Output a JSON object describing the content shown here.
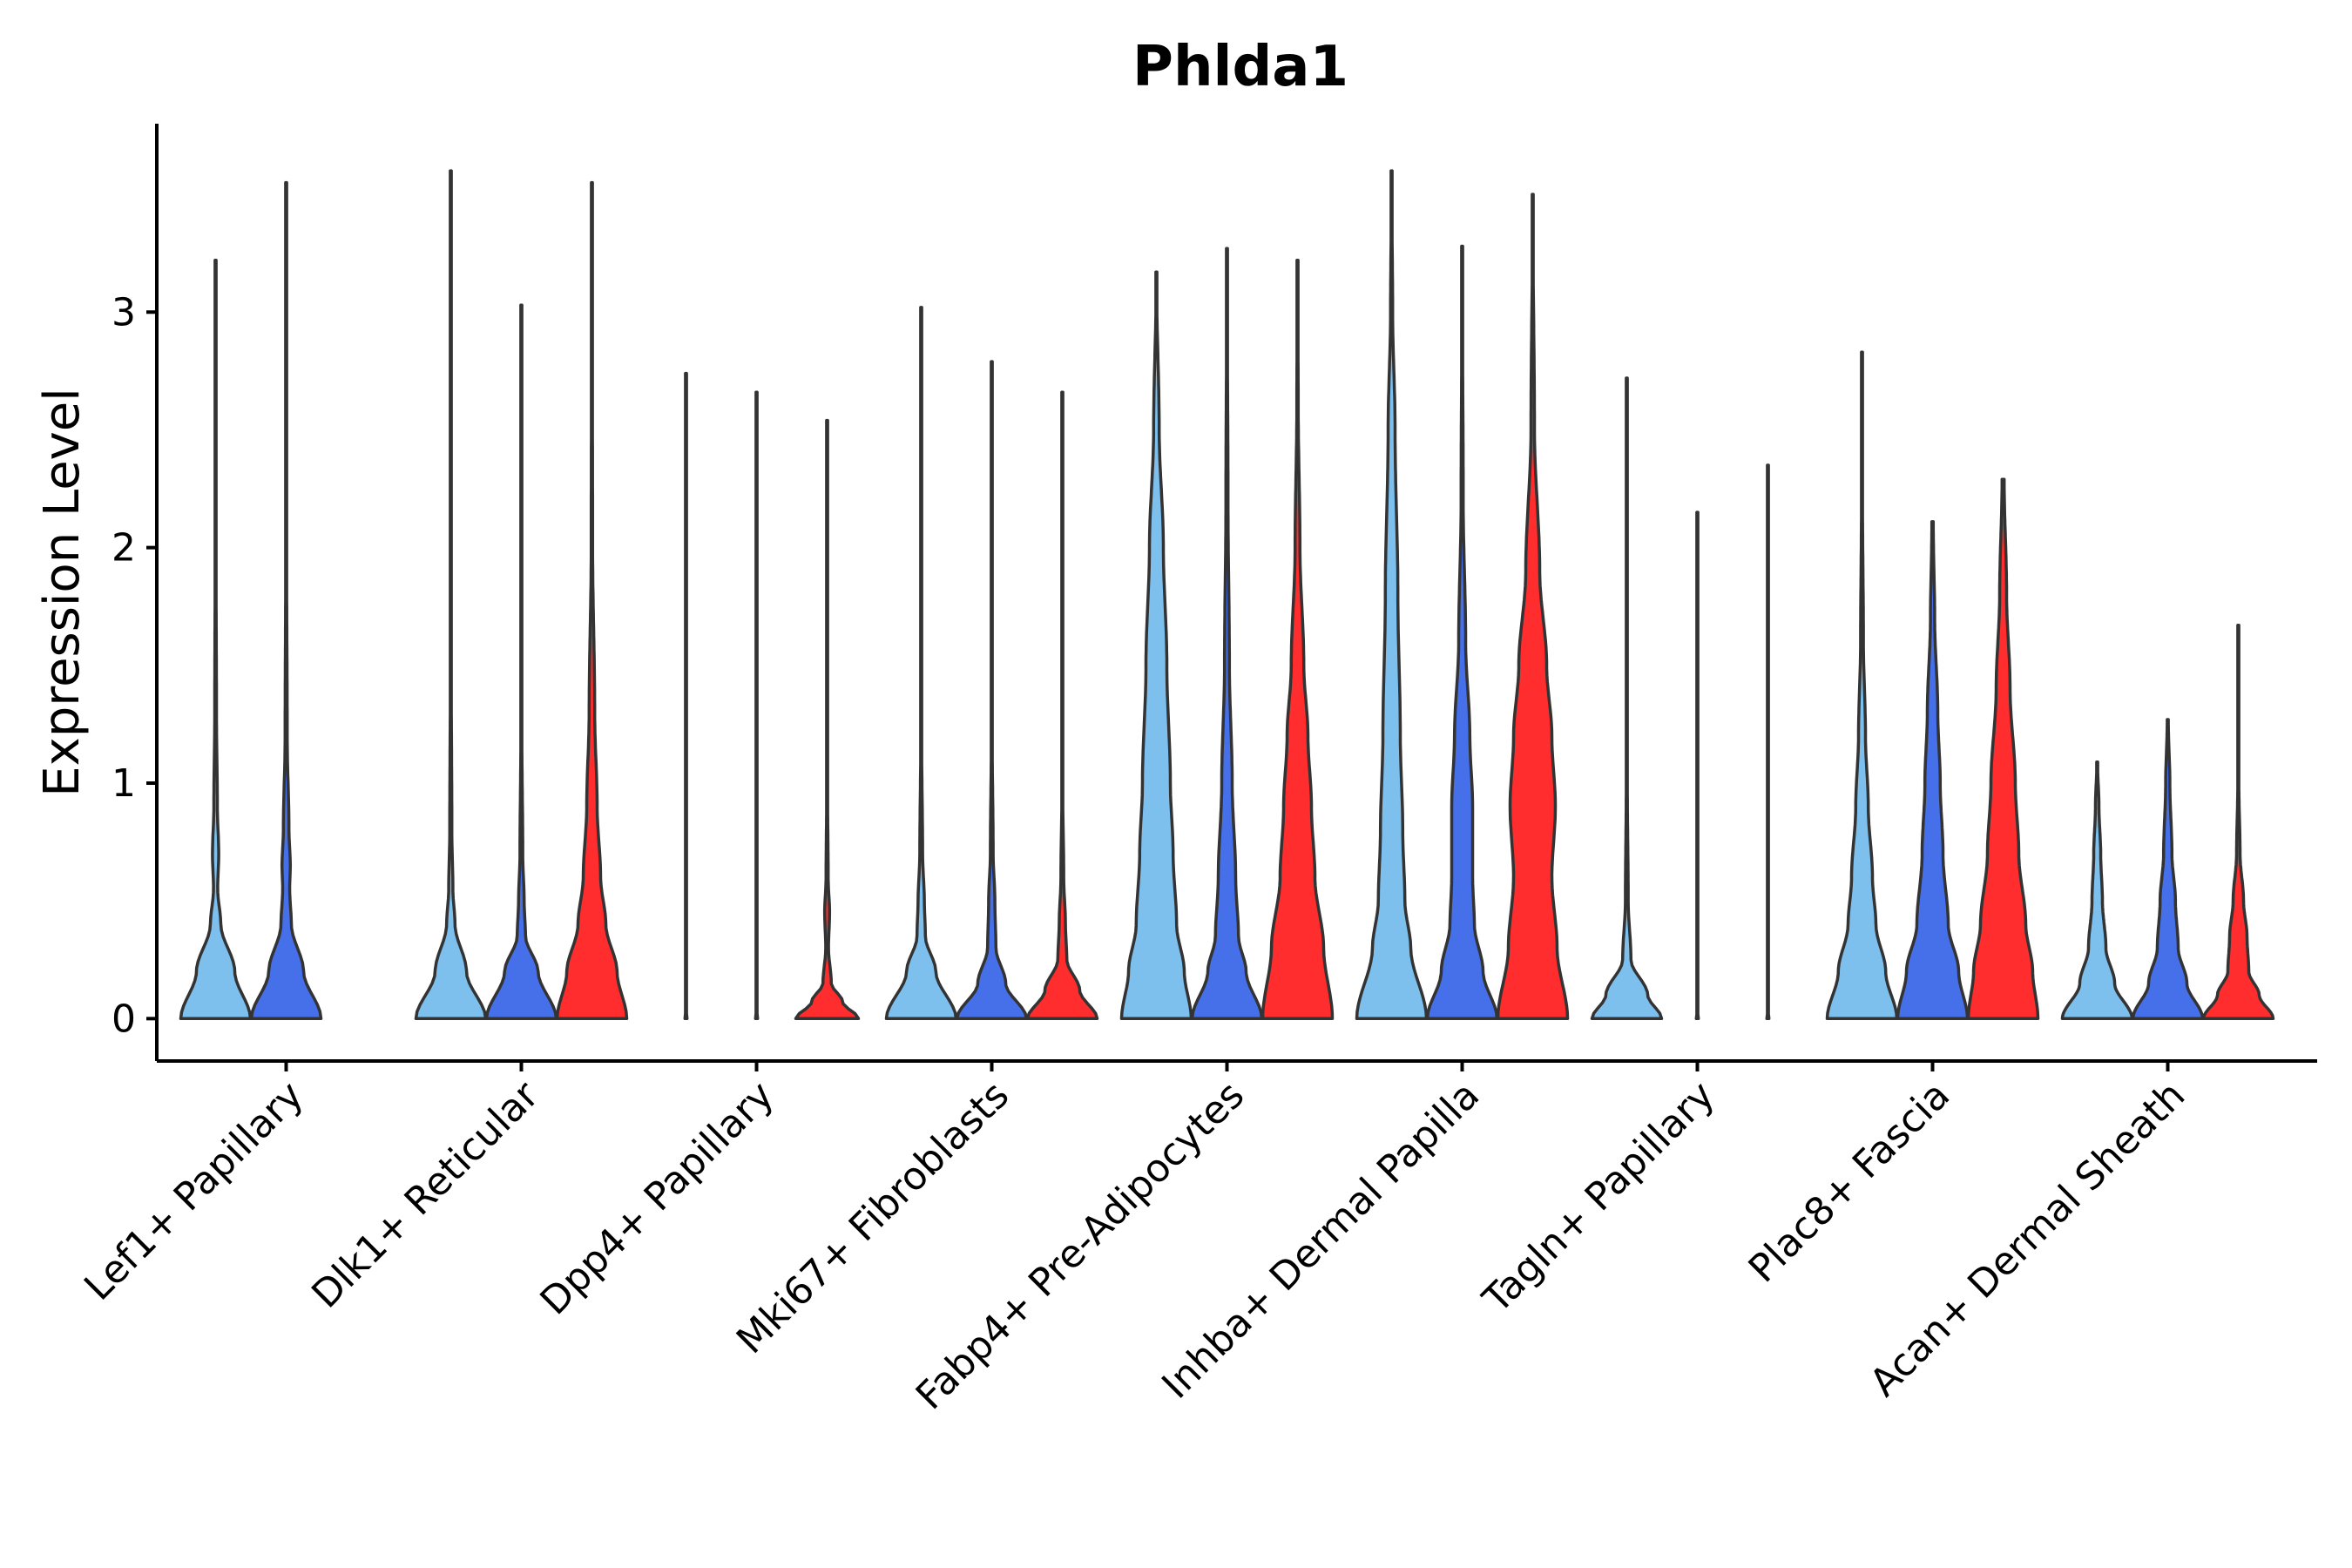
{
  "chart_data": {
    "type": "violin",
    "title": "Phlda1",
    "xlabel": "",
    "ylabel": "Expression Level",
    "ylim": [
      -0.18,
      3.8
    ],
    "yticks": [
      0,
      1,
      2,
      3
    ],
    "legend": "none",
    "grid": false,
    "categories": [
      "Lef1+ Papillary",
      "Dlk1+ Reticular",
      "Dpp4+ Papillary",
      "Mki67+ Fibroblasts",
      "Fabp4+ Pre-Adipocytes",
      "Inhba+ Dermal Papilla",
      "Tagln+ Papillary",
      "Plac8+ Fascia",
      "Acan+ Dermal Sheath"
    ],
    "groups": [
      {
        "name": "group-1",
        "color": "#7DC0EE"
      },
      {
        "name": "group-2",
        "color": "#4570EA"
      },
      {
        "name": "group-3",
        "color": "#FF2D2D"
      }
    ],
    "violins": [
      {
        "category": 0,
        "group": 0,
        "max": 3.22,
        "profile": [
          [
            0,
            1.0
          ],
          [
            0.2,
            0.55
          ],
          [
            0.4,
            0.15
          ],
          [
            0.55,
            0.06
          ],
          [
            0.7,
            0.09
          ],
          [
            0.9,
            0.05
          ],
          [
            1.3,
            0.025
          ],
          [
            2.0,
            0.012
          ],
          [
            3.22,
            0.0
          ]
        ]
      },
      {
        "category": 0,
        "group": 1,
        "max": 3.55,
        "profile": [
          [
            0,
            1.0
          ],
          [
            0.2,
            0.5
          ],
          [
            0.4,
            0.15
          ],
          [
            0.55,
            0.1
          ],
          [
            0.65,
            0.12
          ],
          [
            0.8,
            0.08
          ],
          [
            1.2,
            0.03
          ],
          [
            2.0,
            0.012
          ],
          [
            3.55,
            0.0
          ]
        ]
      },
      {
        "category": 1,
        "group": 0,
        "max": 3.6,
        "profile": [
          [
            0,
            1.0
          ],
          [
            0.2,
            0.45
          ],
          [
            0.4,
            0.12
          ],
          [
            0.55,
            0.06
          ],
          [
            0.8,
            0.03
          ],
          [
            1.5,
            0.012
          ],
          [
            3.6,
            0.0
          ]
        ]
      },
      {
        "category": 1,
        "group": 1,
        "max": 3.03,
        "profile": [
          [
            0,
            1.0
          ],
          [
            0.2,
            0.48
          ],
          [
            0.35,
            0.12
          ],
          [
            0.5,
            0.08
          ],
          [
            0.7,
            0.04
          ],
          [
            1.2,
            0.015
          ],
          [
            3.03,
            0.0
          ]
        ]
      },
      {
        "category": 1,
        "group": 2,
        "max": 3.55,
        "profile": [
          [
            0,
            1.0
          ],
          [
            0.2,
            0.72
          ],
          [
            0.4,
            0.4
          ],
          [
            0.6,
            0.25
          ],
          [
            0.9,
            0.15
          ],
          [
            1.3,
            0.08
          ],
          [
            2.0,
            0.02
          ],
          [
            3.55,
            0.0
          ]
        ]
      },
      {
        "category": 2,
        "group": 0,
        "max": 2.74,
        "profile": [
          [
            0,
            0.03
          ],
          [
            0.01,
            0.01
          ],
          [
            0.05,
            0.005
          ],
          [
            2.74,
            0.0
          ]
        ]
      },
      {
        "category": 2,
        "group": 1,
        "max": 2.66,
        "profile": [
          [
            0,
            0.03
          ],
          [
            0.01,
            0.01
          ],
          [
            0.05,
            0.005
          ],
          [
            2.66,
            0.0
          ]
        ]
      },
      {
        "category": 2,
        "group": 2,
        "max": 2.54,
        "profile": [
          [
            0,
            0.9
          ],
          [
            0.07,
            0.45
          ],
          [
            0.15,
            0.12
          ],
          [
            0.3,
            0.04
          ],
          [
            0.45,
            0.07
          ],
          [
            0.6,
            0.03
          ],
          [
            1.0,
            0.01
          ],
          [
            2.54,
            0.0
          ]
        ]
      },
      {
        "category": 3,
        "group": 0,
        "max": 3.02,
        "profile": [
          [
            0,
            1.0
          ],
          [
            0.2,
            0.42
          ],
          [
            0.35,
            0.12
          ],
          [
            0.5,
            0.09
          ],
          [
            0.7,
            0.04
          ],
          [
            1.2,
            0.012
          ],
          [
            3.02,
            0.0
          ]
        ]
      },
      {
        "category": 3,
        "group": 1,
        "max": 2.79,
        "profile": [
          [
            0,
            1.0
          ],
          [
            0.15,
            0.4
          ],
          [
            0.3,
            0.12
          ],
          [
            0.5,
            0.09
          ],
          [
            0.7,
            0.04
          ],
          [
            1.2,
            0.012
          ],
          [
            2.79,
            0.0
          ]
        ]
      },
      {
        "category": 3,
        "group": 2,
        "max": 2.66,
        "profile": [
          [
            0,
            1.0
          ],
          [
            0.12,
            0.5
          ],
          [
            0.25,
            0.13
          ],
          [
            0.4,
            0.09
          ],
          [
            0.6,
            0.04
          ],
          [
            1.0,
            0.01
          ],
          [
            2.66,
            0.0
          ]
        ]
      },
      {
        "category": 4,
        "group": 0,
        "max": 3.17,
        "profile": [
          [
            0,
            1.0
          ],
          [
            0.2,
            0.8
          ],
          [
            0.4,
            0.58
          ],
          [
            0.7,
            0.48
          ],
          [
            1.0,
            0.4
          ],
          [
            1.5,
            0.3
          ],
          [
            2.0,
            0.2
          ],
          [
            2.5,
            0.08
          ],
          [
            3.17,
            0.0
          ]
        ]
      },
      {
        "category": 4,
        "group": 1,
        "max": 3.27,
        "profile": [
          [
            0,
            1.0
          ],
          [
            0.2,
            0.55
          ],
          [
            0.35,
            0.33
          ],
          [
            0.6,
            0.25
          ],
          [
            1.0,
            0.15
          ],
          [
            1.5,
            0.07
          ],
          [
            2.2,
            0.03
          ],
          [
            3.27,
            0.0
          ]
        ]
      },
      {
        "category": 4,
        "group": 2,
        "max": 3.22,
        "profile": [
          [
            0,
            1.0
          ],
          [
            0.3,
            0.75
          ],
          [
            0.6,
            0.5
          ],
          [
            0.9,
            0.4
          ],
          [
            1.2,
            0.3
          ],
          [
            1.5,
            0.18
          ],
          [
            2.0,
            0.07
          ],
          [
            2.6,
            0.02
          ],
          [
            3.22,
            0.0
          ]
        ]
      },
      {
        "category": 5,
        "group": 0,
        "max": 3.6,
        "profile": [
          [
            0,
            1.0
          ],
          [
            0.3,
            0.55
          ],
          [
            0.5,
            0.38
          ],
          [
            0.8,
            0.32
          ],
          [
            1.2,
            0.25
          ],
          [
            1.8,
            0.18
          ],
          [
            2.5,
            0.1
          ],
          [
            3.0,
            0.03
          ],
          [
            3.6,
            0.0
          ]
        ]
      },
      {
        "category": 5,
        "group": 1,
        "max": 3.28,
        "profile": [
          [
            0,
            1.0
          ],
          [
            0.2,
            0.6
          ],
          [
            0.4,
            0.35
          ],
          [
            0.6,
            0.3
          ],
          [
            0.9,
            0.3
          ],
          [
            1.2,
            0.22
          ],
          [
            1.6,
            0.1
          ],
          [
            2.2,
            0.03
          ],
          [
            3.28,
            0.0
          ]
        ]
      },
      {
        "category": 5,
        "group": 2,
        "max": 3.5,
        "profile": [
          [
            0,
            1.0
          ],
          [
            0.3,
            0.7
          ],
          [
            0.6,
            0.55
          ],
          [
            0.9,
            0.65
          ],
          [
            1.2,
            0.55
          ],
          [
            1.5,
            0.4
          ],
          [
            1.9,
            0.2
          ],
          [
            2.5,
            0.05
          ],
          [
            3.5,
            0.0
          ]
        ]
      },
      {
        "category": 6,
        "group": 0,
        "max": 2.72,
        "profile": [
          [
            0,
            1.0
          ],
          [
            0.1,
            0.6
          ],
          [
            0.25,
            0.12
          ],
          [
            0.5,
            0.04
          ],
          [
            1.0,
            0.015
          ],
          [
            2.72,
            0.0
          ]
        ]
      },
      {
        "category": 6,
        "group": 1,
        "max": 2.15,
        "profile": [
          [
            0,
            0.03
          ],
          [
            0.01,
            0.01
          ],
          [
            0.05,
            0.005
          ],
          [
            2.15,
            0.0
          ]
        ]
      },
      {
        "category": 6,
        "group": 2,
        "max": 2.35,
        "profile": [
          [
            0,
            0.03
          ],
          [
            0.01,
            0.01
          ],
          [
            0.05,
            0.005
          ],
          [
            2.35,
            0.0
          ]
        ]
      },
      {
        "category": 7,
        "group": 0,
        "max": 2.83,
        "profile": [
          [
            0,
            1.0
          ],
          [
            0.2,
            0.68
          ],
          [
            0.4,
            0.4
          ],
          [
            0.6,
            0.3
          ],
          [
            0.9,
            0.18
          ],
          [
            1.2,
            0.1
          ],
          [
            1.6,
            0.04
          ],
          [
            2.2,
            0.015
          ],
          [
            2.83,
            0.0
          ]
        ]
      },
      {
        "category": 7,
        "group": 1,
        "max": 2.11,
        "profile": [
          [
            0,
            1.0
          ],
          [
            0.2,
            0.75
          ],
          [
            0.4,
            0.45
          ],
          [
            0.7,
            0.3
          ],
          [
            1.0,
            0.22
          ],
          [
            1.3,
            0.15
          ],
          [
            1.7,
            0.06
          ],
          [
            2.11,
            0.02
          ]
        ]
      },
      {
        "category": 7,
        "group": 2,
        "max": 2.29,
        "profile": [
          [
            0,
            1.0
          ],
          [
            0.2,
            0.85
          ],
          [
            0.4,
            0.65
          ],
          [
            0.7,
            0.45
          ],
          [
            1.0,
            0.35
          ],
          [
            1.4,
            0.2
          ],
          [
            1.8,
            0.1
          ],
          [
            2.29,
            0.03
          ]
        ]
      },
      {
        "category": 8,
        "group": 0,
        "max": 1.09,
        "profile": [
          [
            0,
            1.0
          ],
          [
            0.15,
            0.5
          ],
          [
            0.3,
            0.25
          ],
          [
            0.5,
            0.15
          ],
          [
            0.7,
            0.1
          ],
          [
            0.9,
            0.05
          ],
          [
            1.09,
            0.01
          ]
        ]
      },
      {
        "category": 8,
        "group": 1,
        "max": 1.27,
        "profile": [
          [
            0,
            1.0
          ],
          [
            0.15,
            0.55
          ],
          [
            0.3,
            0.3
          ],
          [
            0.5,
            0.22
          ],
          [
            0.7,
            0.12
          ],
          [
            1.0,
            0.06
          ],
          [
            1.27,
            0.015
          ]
        ]
      },
      {
        "category": 8,
        "group": 2,
        "max": 1.67,
        "profile": [
          [
            0,
            1.0
          ],
          [
            0.1,
            0.6
          ],
          [
            0.2,
            0.3
          ],
          [
            0.35,
            0.25
          ],
          [
            0.5,
            0.15
          ],
          [
            0.7,
            0.05
          ],
          [
            1.0,
            0.015
          ],
          [
            1.67,
            0.0
          ]
        ]
      }
    ]
  }
}
